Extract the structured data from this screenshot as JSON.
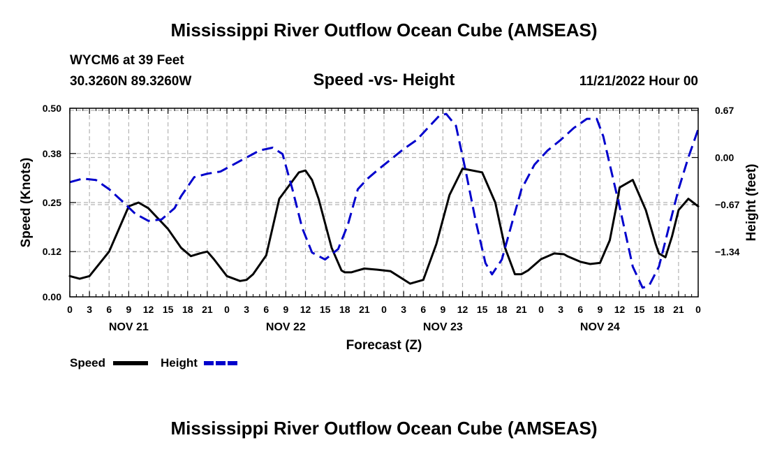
{
  "header": {
    "title": "Mississippi River Outflow Ocean Cube (AMSEAS)",
    "station": "WYCM6 at 39 Feet",
    "coords": "30.3260N  89.3260W",
    "subtitle": "Speed -vs- Height",
    "datetime": "11/21/2022 Hour 00"
  },
  "footer": {
    "title": "Mississippi River Outflow Ocean Cube (AMSEAS)"
  },
  "chart_data": {
    "type": "line",
    "title": "Speed -vs- Height",
    "xlabel": "Forecast (Z)",
    "ylabel": "Speed (Knots)",
    "y2label": "Height (feet)",
    "xlim": [
      0,
      96
    ],
    "ylim": [
      0,
      0.5
    ],
    "y2lim": [
      -1.98,
      0.7
    ],
    "grid": true,
    "x_tick_values": [
      0,
      3,
      6,
      9,
      12,
      15,
      18,
      21,
      24,
      27,
      30,
      33,
      36,
      39,
      42,
      45,
      48,
      51,
      54,
      57,
      60,
      63,
      66,
      69,
      72,
      75,
      78,
      81,
      84,
      87,
      90,
      93,
      96
    ],
    "x_tick_labels": [
      "0",
      "3",
      "6",
      "9",
      "12",
      "15",
      "18",
      "21",
      "0",
      "3",
      "6",
      "9",
      "12",
      "15",
      "18",
      "21",
      "0",
      "3",
      "6",
      "9",
      "12",
      "15",
      "18",
      "21",
      "0",
      "3",
      "6",
      "9",
      "12",
      "15",
      "18",
      "21",
      "0"
    ],
    "date_labels": [
      {
        "x": 9,
        "label": "NOV 21"
      },
      {
        "x": 33,
        "label": "NOV 22"
      },
      {
        "x": 57,
        "label": "NOV 23"
      },
      {
        "x": 81,
        "label": "NOV 24"
      }
    ],
    "y_ticks": [
      0.0,
      0.12,
      0.25,
      0.38,
      0.5
    ],
    "y_tick_labels": [
      "0.00",
      "0.12",
      "0.25",
      "0.38",
      "0.50"
    ],
    "y2_ticks": [
      0.67,
      0.0,
      -0.67,
      -1.34
    ],
    "y2_tick_labels": [
      "0.67",
      "0.00",
      "−0.67",
      "−1.34"
    ],
    "legend": {
      "placement": "bottom-left",
      "entries": [
        "Speed",
        "Height"
      ]
    },
    "series": [
      {
        "name": "Speed",
        "axis": "left",
        "color": "#000000",
        "style": "solid",
        "x": [
          0,
          1.5,
          3,
          6,
          8,
          9,
          10.5,
          12,
          15,
          17,
          18.5,
          20,
          21,
          22,
          24,
          26,
          27,
          28,
          30,
          32,
          35,
          36,
          37,
          38,
          40,
          41.5,
          42,
          43,
          45,
          47,
          49,
          52,
          54,
          56,
          58,
          60,
          63,
          65,
          66.5,
          68,
          69,
          70,
          72,
          74,
          75.5,
          76,
          78,
          79.5,
          81,
          82.5,
          83.5,
          84,
          86,
          88,
          89.5,
          90,
          91,
          92,
          93,
          94.5,
          96
        ],
        "values": [
          0.055,
          0.048,
          0.055,
          0.12,
          0.2,
          0.24,
          0.25,
          0.235,
          0.18,
          0.13,
          0.108,
          0.116,
          0.12,
          0.1,
          0.055,
          0.042,
          0.045,
          0.06,
          0.11,
          0.26,
          0.33,
          0.335,
          0.31,
          0.26,
          0.13,
          0.07,
          0.065,
          0.065,
          0.075,
          0.072,
          0.068,
          0.035,
          0.045,
          0.14,
          0.27,
          0.34,
          0.33,
          0.25,
          0.13,
          0.06,
          0.06,
          0.07,
          0.1,
          0.115,
          0.113,
          0.108,
          0.093,
          0.087,
          0.09,
          0.15,
          0.24,
          0.29,
          0.31,
          0.23,
          0.14,
          0.115,
          0.105,
          0.16,
          0.23,
          0.26,
          0.24
        ]
      },
      {
        "name": "Height",
        "axis": "right",
        "color": "#0000cc",
        "style": "dashed",
        "x": [
          0,
          2,
          4,
          6,
          8,
          10,
          12,
          14,
          16,
          17,
          19,
          21,
          23,
          25,
          27,
          29,
          31,
          32.5,
          34,
          35.5,
          37,
          39,
          41,
          42.5,
          44,
          45.5,
          47,
          49,
          51,
          53,
          55,
          56.5,
          57.5,
          59,
          60.5,
          62,
          63.5,
          64.5,
          66,
          67.5,
          69,
          71,
          73,
          75,
          77,
          79,
          80.5,
          81.5,
          82.5,
          84,
          86,
          87.5,
          88.5,
          90,
          91.5,
          93,
          94.5,
          96
        ],
        "values": [
          -0.35,
          -0.3,
          -0.32,
          -0.45,
          -0.62,
          -0.8,
          -0.9,
          -0.88,
          -0.72,
          -0.55,
          -0.28,
          -0.23,
          -0.2,
          -0.1,
          0.0,
          0.1,
          0.14,
          0.05,
          -0.45,
          -1.0,
          -1.35,
          -1.45,
          -1.3,
          -0.95,
          -0.45,
          -0.3,
          -0.18,
          -0.03,
          0.12,
          0.25,
          0.45,
          0.6,
          0.62,
          0.45,
          -0.2,
          -0.9,
          -1.5,
          -1.66,
          -1.45,
          -0.95,
          -0.45,
          -0.1,
          0.1,
          0.25,
          0.42,
          0.55,
          0.55,
          0.3,
          -0.1,
          -0.7,
          -1.55,
          -1.85,
          -1.82,
          -1.55,
          -1.0,
          -0.45,
          0.0,
          0.4
        ]
      }
    ]
  }
}
